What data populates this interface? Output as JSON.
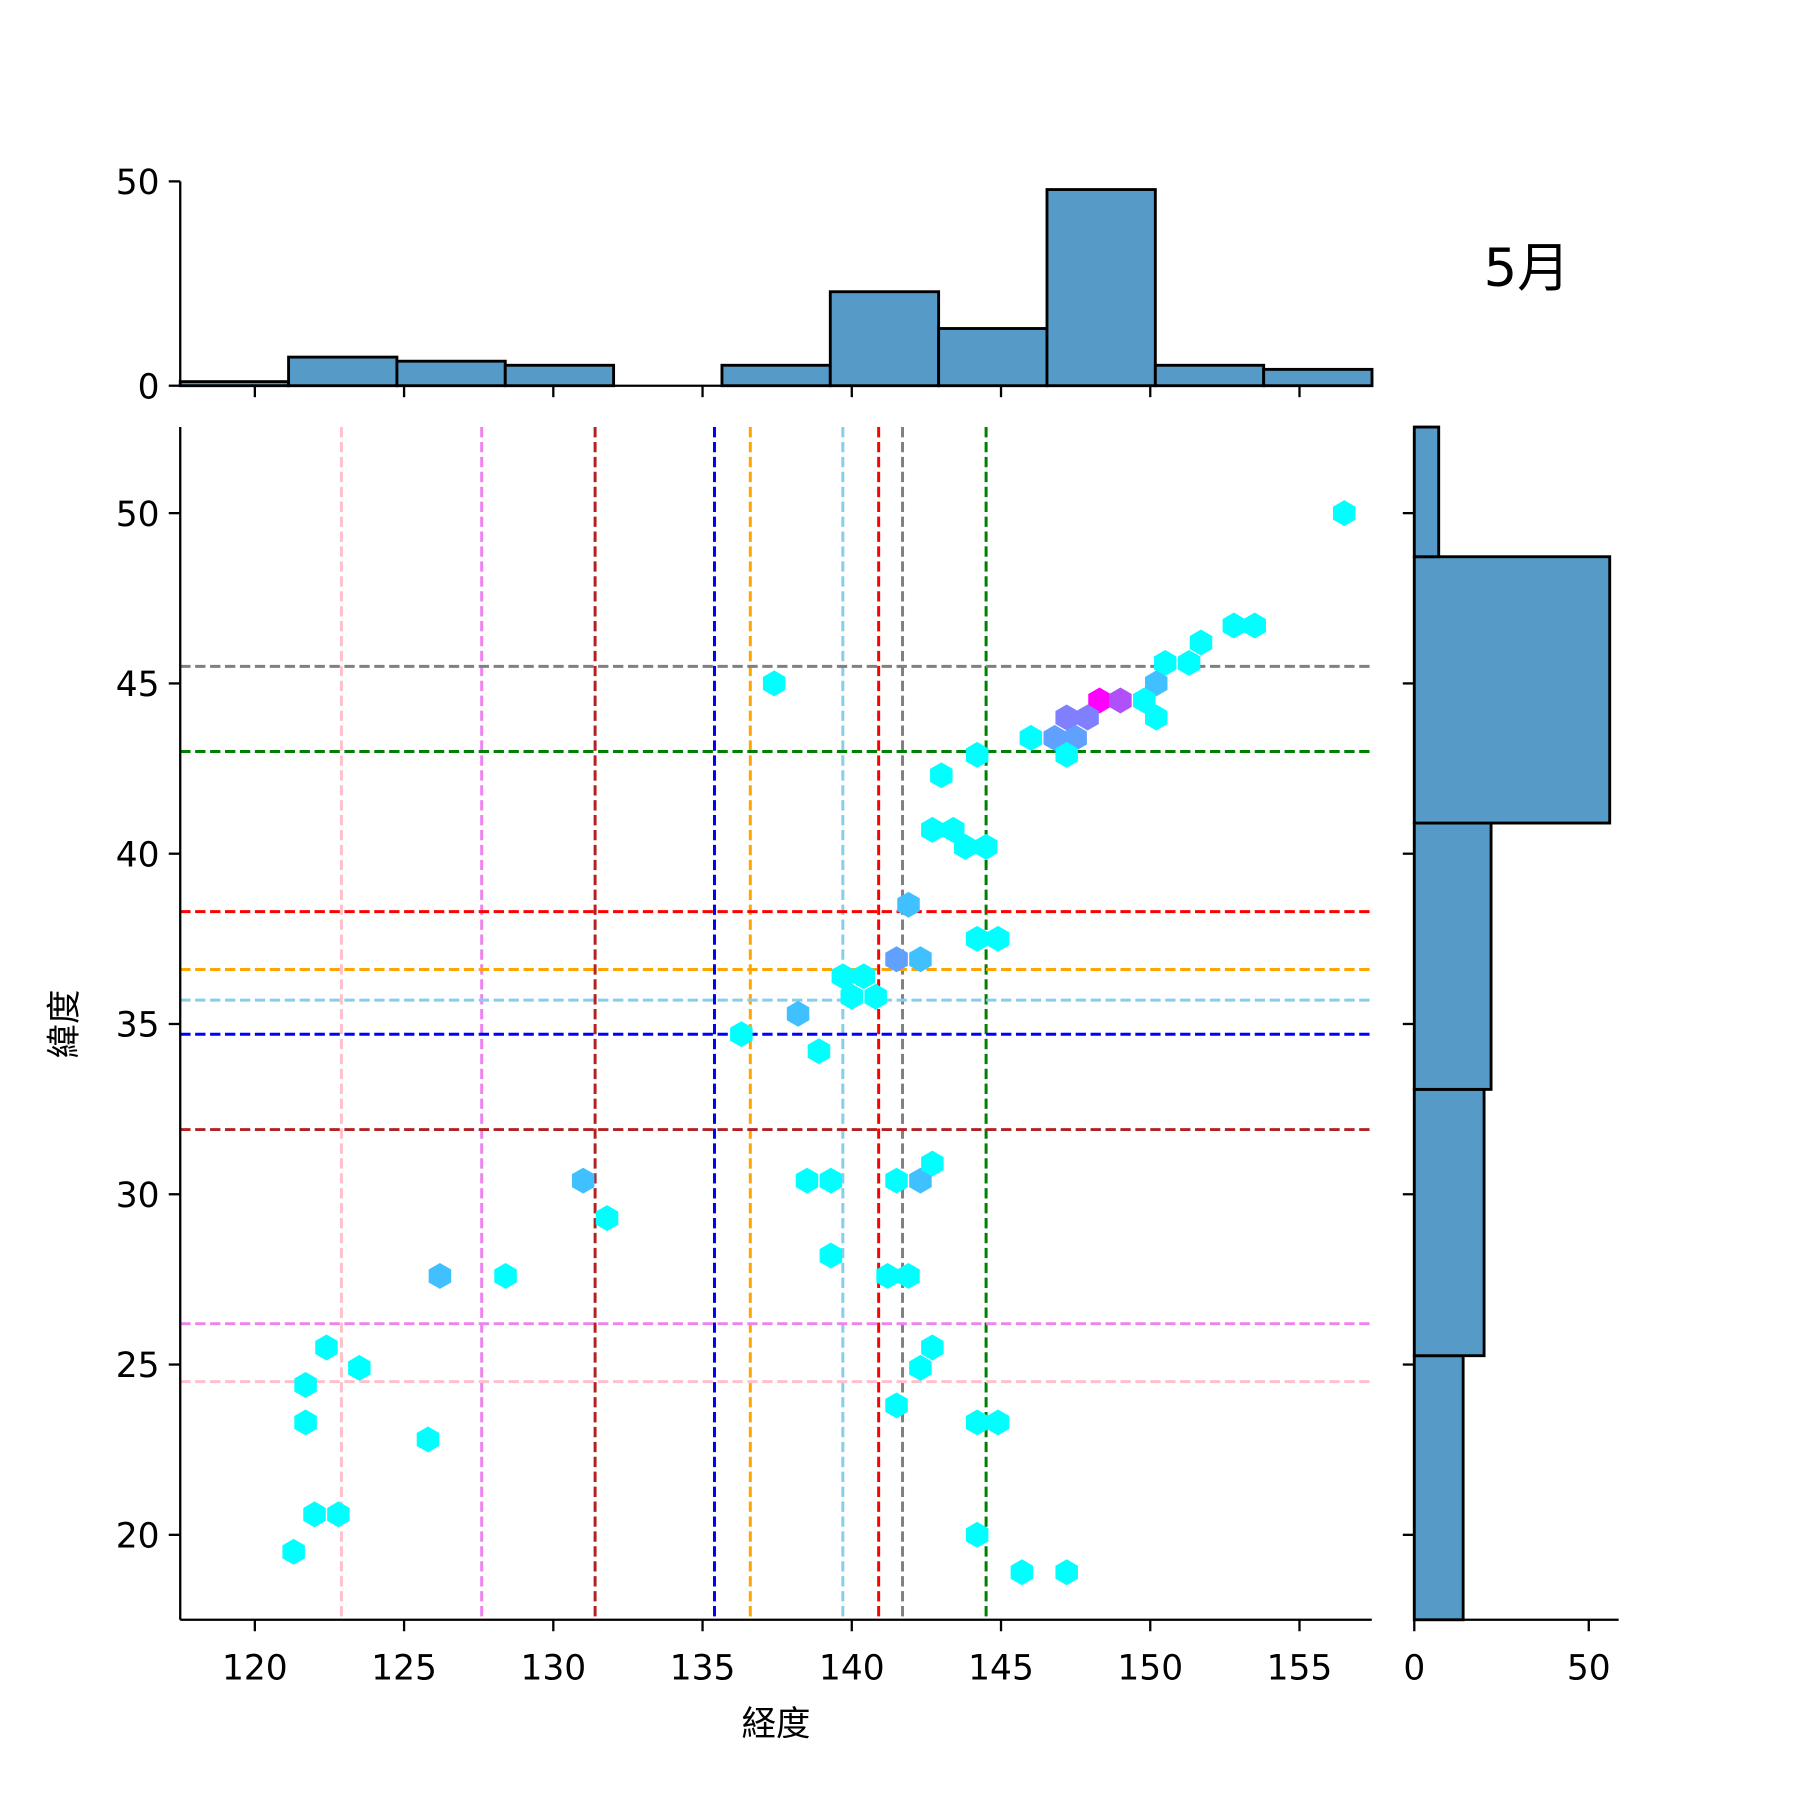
{
  "chart_data": {
    "type": "hexbin-jointplot",
    "title": "5月",
    "xlabel": "経度",
    "ylabel": "緯度",
    "xlim": [
      117.5,
      157.4
    ],
    "ylim": [
      17.5,
      52.5
    ],
    "xticks": [
      "120",
      "125",
      "130",
      "135",
      "140",
      "145",
      "150",
      "155"
    ],
    "yticks": [
      "20",
      "25",
      "30",
      "35",
      "40",
      "45",
      "50"
    ],
    "grid": false,
    "vlines": [
      {
        "x": 122.9,
        "color": "#ffc0cb"
      },
      {
        "x": 127.6,
        "color": "#ee82ee"
      },
      {
        "x": 131.4,
        "color": "#b22222"
      },
      {
        "x": 135.4,
        "color": "#0000ff"
      },
      {
        "x": 136.6,
        "color": "#ffa500"
      },
      {
        "x": 139.7,
        "color": "#87ceeb"
      },
      {
        "x": 140.9,
        "color": "#ff0000"
      },
      {
        "x": 141.7,
        "color": "#808080"
      },
      {
        "x": 144.5,
        "color": "#008000"
      }
    ],
    "hlines": [
      {
        "y": 45.5,
        "color": "#808080"
      },
      {
        "y": 43.0,
        "color": "#008000"
      },
      {
        "y": 38.3,
        "color": "#ff0000"
      },
      {
        "y": 36.6,
        "color": "#ffa500"
      },
      {
        "y": 35.7,
        "color": "#87ceeb"
      },
      {
        "y": 34.7,
        "color": "#0000ff"
      },
      {
        "y": 31.9,
        "color": "#b22222"
      },
      {
        "y": 26.2,
        "color": "#ee82ee"
      },
      {
        "y": 24.5,
        "color": "#ffc0cb"
      }
    ],
    "hexbins": [
      [
        156.5,
        50.0,
        "#00ffff"
      ],
      [
        152.8,
        46.7,
        "#00ffff"
      ],
      [
        153.5,
        46.7,
        "#00ffff"
      ],
      [
        151.7,
        46.2,
        "#00ffff"
      ],
      [
        150.5,
        45.6,
        "#00ffff"
      ],
      [
        151.3,
        45.6,
        "#00ffff"
      ],
      [
        150.2,
        45.0,
        "#40c0ff"
      ],
      [
        137.4,
        45.0,
        "#00ffff"
      ],
      [
        148.3,
        44.5,
        "#ff00ff"
      ],
      [
        149.0,
        44.5,
        "#b050f8"
      ],
      [
        149.8,
        44.5,
        "#00ffff"
      ],
      [
        147.2,
        44.0,
        "#8080ff"
      ],
      [
        147.9,
        44.0,
        "#8080ff"
      ],
      [
        150.2,
        44.0,
        "#00ffff"
      ],
      [
        146.0,
        43.4,
        "#00ffff"
      ],
      [
        146.8,
        43.4,
        "#60a0ff"
      ],
      [
        147.5,
        43.4,
        "#60a0ff"
      ],
      [
        144.2,
        42.9,
        "#00ffff"
      ],
      [
        147.2,
        42.9,
        "#00ffff"
      ],
      [
        143.0,
        42.3,
        "#00ffff"
      ],
      [
        142.7,
        40.7,
        "#00ffff"
      ],
      [
        143.4,
        40.7,
        "#00ffff"
      ],
      [
        143.8,
        40.2,
        "#00ffff"
      ],
      [
        144.5,
        40.2,
        "#00ffff"
      ],
      [
        141.9,
        38.5,
        "#40c0ff"
      ],
      [
        144.2,
        37.5,
        "#00ffff"
      ],
      [
        144.9,
        37.5,
        "#00ffff"
      ],
      [
        141.5,
        36.9,
        "#60a0ff"
      ],
      [
        142.3,
        36.9,
        "#40c0ff"
      ],
      [
        139.7,
        36.4,
        "#00ffff"
      ],
      [
        140.4,
        36.4,
        "#00ffff"
      ],
      [
        140.0,
        35.8,
        "#00ffff"
      ],
      [
        140.8,
        35.8,
        "#00ffff"
      ],
      [
        136.3,
        34.7,
        "#00ffff"
      ],
      [
        138.2,
        35.3,
        "#40c0ff"
      ],
      [
        138.9,
        34.2,
        "#00ffff"
      ],
      [
        131.0,
        30.4,
        "#40c0ff"
      ],
      [
        131.8,
        29.3,
        "#00ffff"
      ],
      [
        138.5,
        30.4,
        "#00ffff"
      ],
      [
        139.3,
        30.4,
        "#00ffff"
      ],
      [
        141.5,
        30.4,
        "#00ffff"
      ],
      [
        142.3,
        30.4,
        "#40c0ff"
      ],
      [
        142.7,
        30.9,
        "#00ffff"
      ],
      [
        139.3,
        28.2,
        "#00ffff"
      ],
      [
        141.2,
        27.6,
        "#00ffff"
      ],
      [
        141.9,
        27.6,
        "#00ffff"
      ],
      [
        126.2,
        27.6,
        "#40c0ff"
      ],
      [
        128.4,
        27.6,
        "#00ffff"
      ],
      [
        122.4,
        25.5,
        "#00ffff"
      ],
      [
        123.5,
        24.9,
        "#00ffff"
      ],
      [
        121.7,
        24.4,
        "#00ffff"
      ],
      [
        121.7,
        23.3,
        "#00ffff"
      ],
      [
        125.8,
        22.8,
        "#00ffff"
      ],
      [
        122.0,
        20.6,
        "#00ffff"
      ],
      [
        122.8,
        20.6,
        "#00ffff"
      ],
      [
        121.3,
        19.5,
        "#00ffff"
      ],
      [
        142.7,
        25.5,
        "#00ffff"
      ],
      [
        142.3,
        24.9,
        "#00ffff"
      ],
      [
        141.5,
        23.8,
        "#00ffff"
      ],
      [
        144.2,
        23.3,
        "#00ffff"
      ],
      [
        144.9,
        23.3,
        "#00ffff"
      ],
      [
        144.2,
        20.0,
        "#00ffff"
      ],
      [
        145.7,
        18.9,
        "#00ffff"
      ],
      [
        147.2,
        18.9,
        "#00ffff"
      ]
    ],
    "top_histogram": {
      "bin_edges": [
        117.5,
        121.13,
        124.76,
        128.39,
        132.02,
        135.65,
        139.28,
        142.91,
        146.54,
        150.17,
        153.8,
        157.43
      ],
      "counts": [
        1,
        7,
        6,
        5,
        0,
        5,
        23,
        14,
        48,
        5,
        4
      ],
      "yticks": [
        "0",
        "50"
      ],
      "ylim": [
        0,
        50
      ],
      "color": "#569bc8"
    },
    "right_histogram": {
      "bin_edges": [
        17.44,
        25.26,
        33.08,
        40.9,
        48.72,
        56.54
      ],
      "counts": [
        14,
        20,
        22,
        56,
        7
      ],
      "xticks": [
        "0",
        "50"
      ],
      "color": "#569bc8"
    }
  }
}
